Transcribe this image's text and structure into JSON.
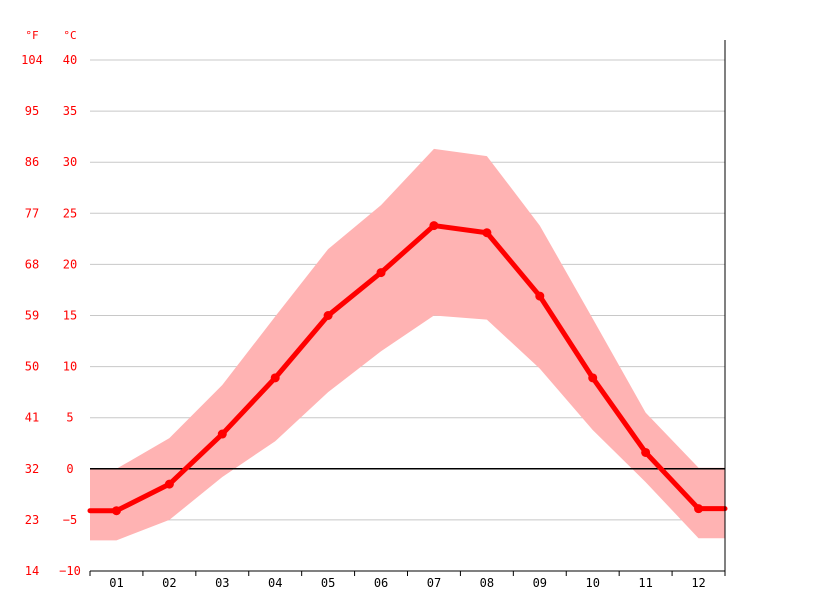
{
  "chart_data": {
    "type": "line",
    "title": "",
    "xlabel": "",
    "ylabel": "",
    "categories": [
      "01",
      "02",
      "03",
      "04",
      "05",
      "06",
      "07",
      "08",
      "09",
      "10",
      "11",
      "12"
    ],
    "units": {
      "left": "°F",
      "right": "°C"
    },
    "yticks_c": [
      -10,
      -5,
      0,
      5,
      10,
      15,
      20,
      25,
      30,
      35,
      40
    ],
    "yticks_f": [
      14,
      23,
      32,
      41,
      50,
      59,
      68,
      77,
      86,
      95,
      104
    ],
    "ylim_c": [
      -10,
      40
    ],
    "series": [
      {
        "values": [
          -4.1,
          -1.5,
          3.4,
          8.9,
          15.0,
          19.2,
          23.8,
          23.1,
          16.9,
          8.9,
          1.6,
          -3.9
        ]
      },
      {
        "values": [
          0.0,
          3.0,
          8.2,
          14.9,
          21.5,
          25.8,
          31.3,
          30.6,
          23.8,
          14.7,
          5.5,
          0.1
        ]
      },
      {
        "values": [
          -7.0,
          -5.0,
          -0.8,
          2.7,
          7.5,
          11.5,
          15.0,
          14.6,
          9.8,
          3.8,
          -1.3,
          -6.8
        ]
      }
    ],
    "colors": {
      "mean_line": "#ff0000",
      "range_band": "#ffb3b3",
      "zero_line": "#000000",
      "grid": "#c8c8c8",
      "tick_text": "#ff0000",
      "x_text": "#000000"
    },
    "grid": true,
    "legend": "none"
  }
}
